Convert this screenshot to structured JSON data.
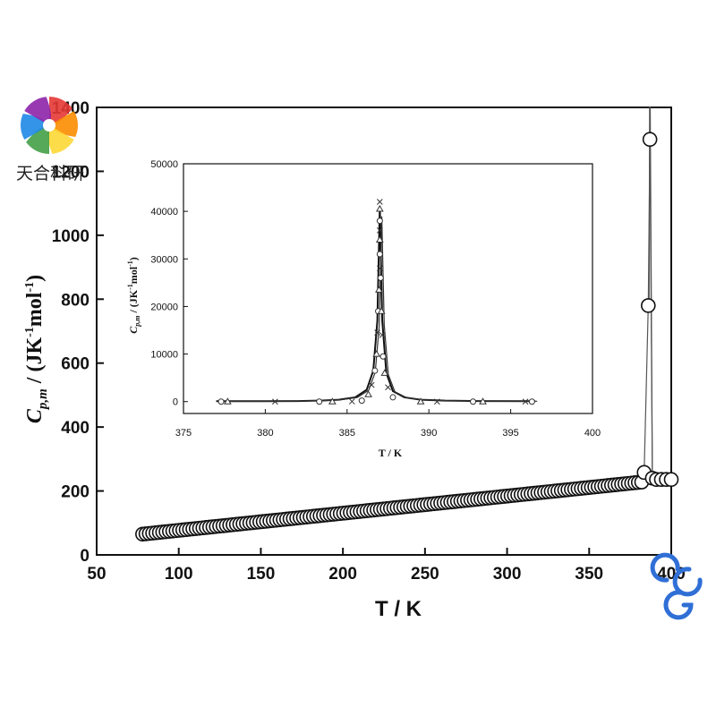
{
  "watermark": {
    "text": "天合科研",
    "colors": [
      "#e53935",
      "#fb8c00",
      "#fdd835",
      "#43a047",
      "#1e88e5",
      "#8e24aa"
    ]
  },
  "corner_logo": {
    "icon": "scg-logo-icon",
    "color": "#2f6fd6"
  },
  "chart_data": [
    {
      "type": "scatter",
      "marker": "open-circle",
      "title": "",
      "xlabel": "T / K",
      "ylabel": "C_p,m / (JK^-1 mol^-1)",
      "xlim": [
        50,
        400
      ],
      "ylim": [
        0,
        1400
      ],
      "xticks": [
        "50",
        "100",
        "150",
        "200",
        "250",
        "300",
        "350",
        "400"
      ],
      "yticks": [
        "0",
        "200",
        "400",
        "600",
        "800",
        "1000",
        "1200",
        "1400"
      ],
      "grid": false,
      "series": [
        {
          "baseline_start": [
            78,
            65
          ],
          "baseline_end": [
            382,
            228
          ],
          "baseline_count": 150,
          "peak_points": [
            [
              383.5,
              258
            ],
            [
              386,
              780
            ],
            [
              387,
              1300
            ],
            [
              388.5,
              240
            ],
            [
              391,
              236
            ],
            [
              394,
              236
            ],
            [
              397,
              236
            ],
            [
              400,
              236
            ]
          ]
        }
      ]
    },
    {
      "type": "scatter",
      "marker": "open-circle, open-triangle, cross",
      "title": "",
      "xlabel": "T / K",
      "ylabel": "C_p,m / (JK^-1 mol^-1)",
      "xlim": [
        375,
        400
      ],
      "ylim": [
        -2500,
        50000
      ],
      "xticks": [
        "375",
        "380",
        "385",
        "390",
        "395",
        "400"
      ],
      "yticks": [
        "0",
        "10000",
        "20000",
        "30000",
        "40000",
        "50000"
      ],
      "grid": false,
      "fit_curve": [
        [
          377,
          80
        ],
        [
          380,
          80
        ],
        [
          382,
          120
        ],
        [
          383.5,
          220
        ],
        [
          384.5,
          400
        ],
        [
          385.5,
          900
        ],
        [
          386.2,
          2500
        ],
        [
          386.6,
          6500
        ],
        [
          386.85,
          17000
        ],
        [
          387.0,
          41000
        ],
        [
          387.15,
          17000
        ],
        [
          387.4,
          6000
        ],
        [
          387.8,
          2200
        ],
        [
          388.5,
          900
        ],
        [
          389.5,
          400
        ],
        [
          391,
          200
        ],
        [
          393,
          120
        ],
        [
          396.5,
          80
        ]
      ],
      "points": [
        [
          377.3,
          0
        ],
        [
          377.7,
          0
        ],
        [
          380.6,
          0
        ],
        [
          383.3,
          0
        ],
        [
          384.1,
          0
        ],
        [
          385.3,
          30
        ],
        [
          385.9,
          200
        ],
        [
          386.3,
          1500
        ],
        [
          386.5,
          3500
        ],
        [
          386.7,
          6500
        ],
        [
          386.8,
          10000
        ],
        [
          386.85,
          14500
        ],
        [
          386.9,
          19000
        ],
        [
          386.95,
          23500
        ],
        [
          387.0,
          28000
        ],
        [
          387.0,
          31000
        ],
        [
          387.0,
          34000
        ],
        [
          387.0,
          36000
        ],
        [
          387.0,
          38000
        ],
        [
          387.0,
          40500
        ],
        [
          387.0,
          42000
        ],
        [
          387.05,
          26000
        ],
        [
          387.1,
          19000
        ],
        [
          387.15,
          14000
        ],
        [
          387.2,
          9500
        ],
        [
          387.3,
          6000
        ],
        [
          387.5,
          3000
        ],
        [
          387.8,
          900
        ],
        [
          389.5,
          0
        ],
        [
          390.5,
          0
        ],
        [
          392.7,
          0
        ],
        [
          393.3,
          0
        ],
        [
          395.9,
          0
        ],
        [
          396.3,
          0
        ]
      ]
    }
  ]
}
